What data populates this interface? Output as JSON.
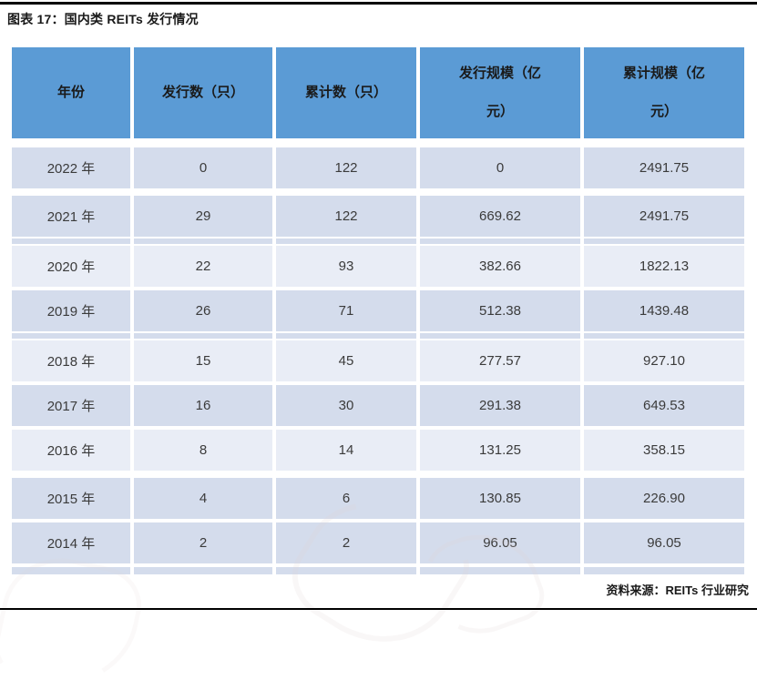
{
  "title": "图表 17：国内类 REITs 发行情况",
  "source": "资料来源：REITs 行业研究",
  "colors": {
    "header_bg": "#5B9BD5",
    "row_dark": "#D4DCEC",
    "row_light": "#E9EDF6",
    "rule_black": "#000000",
    "text_primary": "#1A1A1A",
    "cell_text": "#3B3B3B",
    "watermark": "#E3D4D4"
  },
  "table": {
    "headers": [
      {
        "lines": [
          "年份"
        ]
      },
      {
        "lines": [
          "发行数（只）"
        ]
      },
      {
        "lines": [
          "累计数（只）"
        ]
      },
      {
        "lines": [
          "发行规模（亿",
          "元）"
        ]
      },
      {
        "lines": [
          "累计规模（亿",
          "元）"
        ]
      }
    ],
    "rows": [
      {
        "year": "2022 年",
        "issued": "0",
        "cum_count": "122",
        "scale": "0",
        "cum_scale": "2491.75"
      },
      {
        "year": "2021 年",
        "issued": "29",
        "cum_count": "122",
        "scale": "669.62",
        "cum_scale": "2491.75"
      },
      {
        "year": "2020 年",
        "issued": "22",
        "cum_count": "93",
        "scale": "382.66",
        "cum_scale": "1822.13"
      },
      {
        "year": "2019 年",
        "issued": "26",
        "cum_count": "71",
        "scale": "512.38",
        "cum_scale": "1439.48"
      },
      {
        "year": "2018 年",
        "issued": "15",
        "cum_count": "45",
        "scale": "277.57",
        "cum_scale": "927.10"
      },
      {
        "year": "2017 年",
        "issued": "16",
        "cum_count": "30",
        "scale": "291.38",
        "cum_scale": "649.53"
      },
      {
        "year": "2016 年",
        "issued": "8",
        "cum_count": "14",
        "scale": "131.25",
        "cum_scale": "358.15"
      },
      {
        "year": "2015 年",
        "issued": "4",
        "cum_count": "6",
        "scale": "130.85",
        "cum_scale": "226.90"
      },
      {
        "year": "2014 年",
        "issued": "2",
        "cum_count": "2",
        "scale": "96.05",
        "cum_scale": "96.05"
      }
    ]
  },
  "chart_data": {
    "type": "table",
    "title": "图表 17：国内类 REITs 发行情况",
    "columns": [
      "年份",
      "发行数（只）",
      "累计数（只）",
      "发行规模（亿元）",
      "累计规模（亿元）"
    ],
    "rows": [
      [
        "2022 年",
        0,
        122,
        0,
        2491.75
      ],
      [
        "2021 年",
        29,
        122,
        669.62,
        2491.75
      ],
      [
        "2020 年",
        22,
        93,
        382.66,
        1822.13
      ],
      [
        "2019 年",
        26,
        71,
        512.38,
        1439.48
      ],
      [
        "2018 年",
        15,
        45,
        277.57,
        927.1
      ],
      [
        "2017 年",
        16,
        30,
        291.38,
        649.53
      ],
      [
        "2016 年",
        8,
        14,
        131.25,
        358.15
      ],
      [
        "2015 年",
        4,
        6,
        130.85,
        226.9
      ],
      [
        "2014 年",
        2,
        2,
        96.05,
        96.05
      ]
    ],
    "source": "资料来源：REITs 行业研究"
  }
}
